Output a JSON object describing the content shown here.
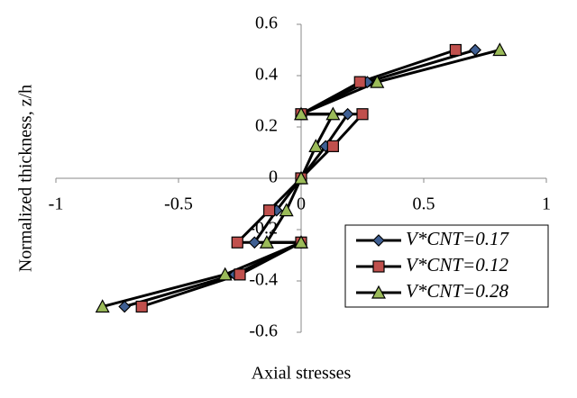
{
  "chart_data": {
    "type": "line",
    "xlabel": "Axial stresses",
    "ylabel": "Normalized thickness, z/h",
    "xlim": [
      -1,
      1
    ],
    "xticks": [
      -1,
      -0.5,
      0,
      0.5,
      1
    ],
    "ylim": [
      -0.6,
      0.6
    ],
    "yticks": [
      -0.6,
      -0.4,
      -0.2,
      0,
      0.2,
      0.4,
      0.6
    ],
    "series": [
      {
        "name": "V*CNT=0.17",
        "color": "#3f5f93",
        "marker": "diamond",
        "x": [
          -0.72,
          -0.27,
          0,
          -0.19,
          -0.1,
          0,
          0.1,
          0.19,
          0,
          0.27,
          0.71
        ],
        "values": [
          -0.5,
          -0.375,
          -0.25,
          -0.25,
          -0.125,
          0,
          0.125,
          0.25,
          0.25,
          0.375,
          0.5
        ]
      },
      {
        "name": "V*CNT=0.12",
        "color": "#c0504d",
        "marker": "square",
        "x": [
          -0.65,
          -0.25,
          0,
          -0.26,
          -0.13,
          0,
          0.13,
          0.25,
          0,
          0.24,
          0.63
        ],
        "values": [
          -0.5,
          -0.375,
          -0.25,
          -0.25,
          -0.125,
          0,
          0.125,
          0.25,
          0.25,
          0.375,
          0.5
        ]
      },
      {
        "name": "V*CNT=0.28",
        "color": "#9bbb59",
        "marker": "triangle",
        "x": [
          -0.81,
          -0.31,
          0,
          -0.14,
          -0.06,
          0,
          0.06,
          0.13,
          0,
          0.31,
          0.81
        ],
        "values": [
          -0.5,
          -0.375,
          -0.25,
          -0.25,
          -0.125,
          0,
          0.125,
          0.25,
          0.25,
          0.375,
          0.5
        ]
      }
    ]
  }
}
